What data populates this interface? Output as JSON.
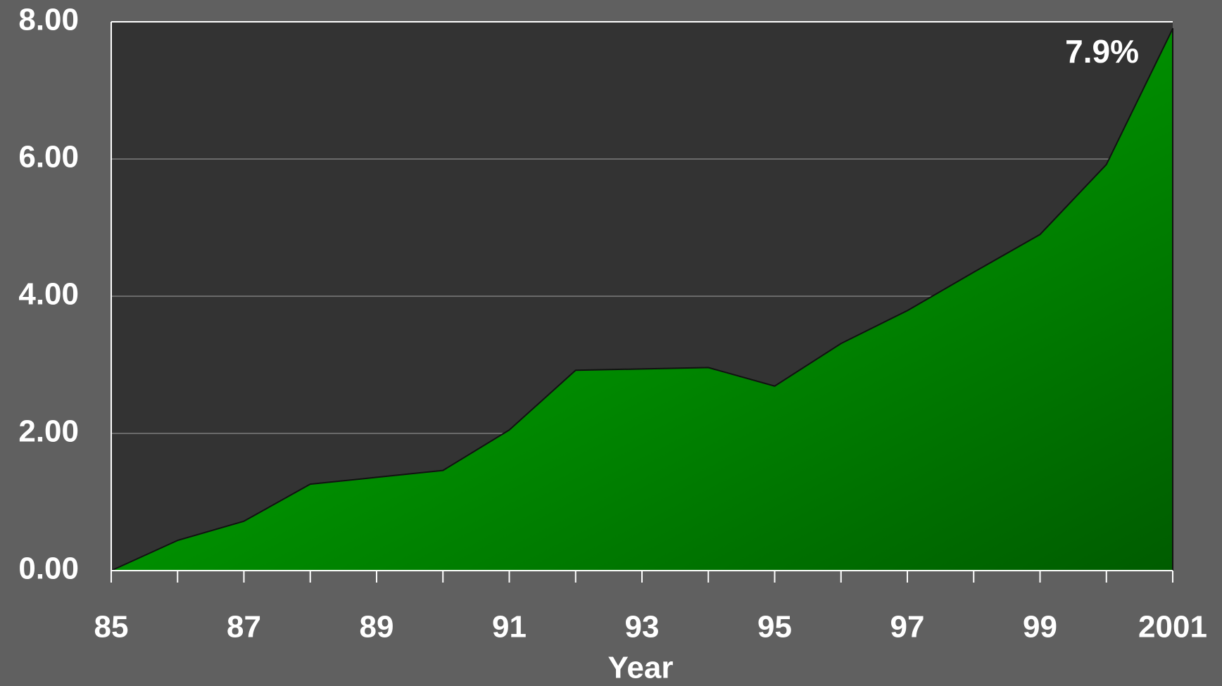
{
  "chart_data": {
    "type": "area",
    "x_label": "Year",
    "categories": [
      "85",
      null,
      "87",
      null,
      "89",
      null,
      "91",
      null,
      "93",
      null,
      "95",
      null,
      "97",
      null,
      "99",
      null,
      "2001"
    ],
    "values": [
      0,
      0.44,
      0.72,
      1.26,
      1.36,
      1.46,
      2.05,
      2.92,
      2.94,
      2.96,
      2.69,
      3.31,
      3.79,
      4.35,
      4.9,
      5.92,
      7.9
    ],
    "value_labels": [
      null,
      null,
      null,
      null,
      null,
      null,
      null,
      null,
      null,
      null,
      null,
      null,
      null,
      null,
      null,
      null,
      "7.9%"
    ],
    "color": "#00c000",
    "ylim": [
      0,
      8
    ],
    "yticks": [
      {
        "value": 0,
        "label": "0.00"
      },
      {
        "value": 2,
        "label": "2.00"
      },
      {
        "value": 4,
        "label": "4.00"
      },
      {
        "value": 6,
        "label": "6.00"
      },
      {
        "value": 8,
        "label": "8.00"
      }
    ],
    "grid": true
  }
}
